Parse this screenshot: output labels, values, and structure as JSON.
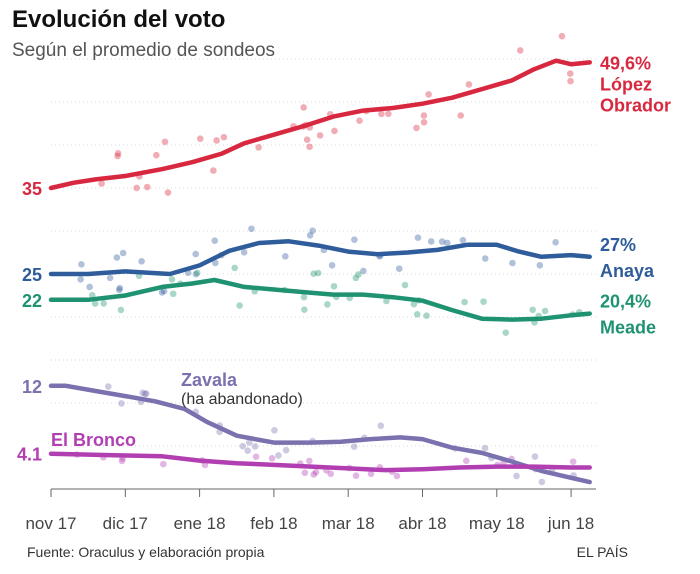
{
  "header": {
    "title": "Evolución del voto",
    "subtitle": "Según el promedio de sondeos"
  },
  "footer": {
    "source": "Fuente: Oraculus y elaboración propia",
    "brand": "EL PAÍS"
  },
  "chart_data": {
    "type": "line",
    "title": "Evolución del voto",
    "subtitle": "Según el promedio de sondeos",
    "xlabel": "",
    "ylabel": "",
    "x_ticks": [
      "nov 17",
      "dic 17",
      "ene 18",
      "feb 18",
      "mar 18",
      "abr 18",
      "may 18",
      "jun 18"
    ],
    "grid": "horizontal dotted",
    "ylim": [
      0,
      57
    ],
    "series": [
      {
        "name": "López Obrador",
        "color": "#d7283f",
        "start_label": "35",
        "end_label": "49,6%",
        "name_lines": [
          "López",
          "Obrador"
        ],
        "x": [
          0,
          0.3,
          0.6,
          1.0,
          1.5,
          1.9,
          2.3,
          2.6,
          3.0,
          3.4,
          3.8,
          4.2,
          4.6,
          5.0,
          5.4,
          5.8,
          6.2,
          6.5,
          6.8,
          7.0,
          7.25
        ],
        "values": [
          35,
          35.6,
          36.0,
          36.4,
          37.2,
          38.0,
          39.0,
          40.2,
          41.2,
          42.2,
          43.3,
          44.0,
          44.3,
          44.8,
          45.5,
          46.5,
          47.5,
          48.8,
          49.8,
          49.4,
          49.6
        ]
      },
      {
        "name": "Anaya",
        "color": "#2f5d9b",
        "start_label": "25",
        "end_label": "27%",
        "x": [
          0,
          0.5,
          1.0,
          1.6,
          2.0,
          2.4,
          2.8,
          3.2,
          3.6,
          4.0,
          4.4,
          4.8,
          5.2,
          5.6,
          6.0,
          6.3,
          6.6,
          7.0,
          7.25
        ],
        "values": [
          25,
          25.0,
          25.3,
          25.0,
          26.0,
          27.7,
          28.6,
          28.8,
          28.3,
          27.6,
          27.3,
          27.5,
          27.8,
          28.4,
          28.4,
          27.6,
          27.0,
          27.2,
          27.0
        ]
      },
      {
        "name": "Meade",
        "color": "#1f9272",
        "start_label": "22",
        "end_label": "20,4%",
        "x": [
          0,
          0.5,
          1.0,
          1.5,
          1.9,
          2.2,
          2.6,
          3.0,
          3.4,
          3.8,
          4.2,
          4.6,
          5.0,
          5.4,
          5.8,
          6.2,
          6.6,
          7.0,
          7.25
        ],
        "values": [
          22,
          22.0,
          22.5,
          23.5,
          23.9,
          24.3,
          23.5,
          23.2,
          22.9,
          22.6,
          22.6,
          22.3,
          21.9,
          20.8,
          19.8,
          19.7,
          19.8,
          20.2,
          20.4
        ]
      },
      {
        "name": "Zavala",
        "note": "(ha abandonado)",
        "color": "#7a72ae",
        "start_label": "12",
        "x": [
          0,
          0.2,
          0.6,
          1.0,
          1.4,
          1.8,
          2.1,
          2.5,
          3.0,
          3.5,
          3.9,
          4.3,
          4.7,
          5.0,
          5.4,
          5.8,
          6.2,
          6.6,
          7.0,
          7.25
        ],
        "values": [
          12,
          12.0,
          11.4,
          10.8,
          10.2,
          9.3,
          7.8,
          6.2,
          5.4,
          5.4,
          5.5,
          5.8,
          6.0,
          5.8,
          4.8,
          4.2,
          3.2,
          2.1,
          1.3,
          0.8
        ]
      },
      {
        "name": "El Bronco",
        "color": "#b13fb2",
        "start_label": "4.1",
        "x": [
          0,
          0.5,
          1.0,
          1.5,
          2.0,
          2.5,
          3.0,
          3.5,
          4.0,
          4.5,
          5.0,
          5.5,
          6.0,
          6.5,
          7.0,
          7.25
        ],
        "values": [
          4.1,
          4.0,
          3.9,
          3.8,
          3.3,
          3.0,
          2.8,
          2.6,
          2.4,
          2.2,
          2.3,
          2.5,
          2.6,
          2.6,
          2.5,
          2.5
        ]
      }
    ]
  }
}
